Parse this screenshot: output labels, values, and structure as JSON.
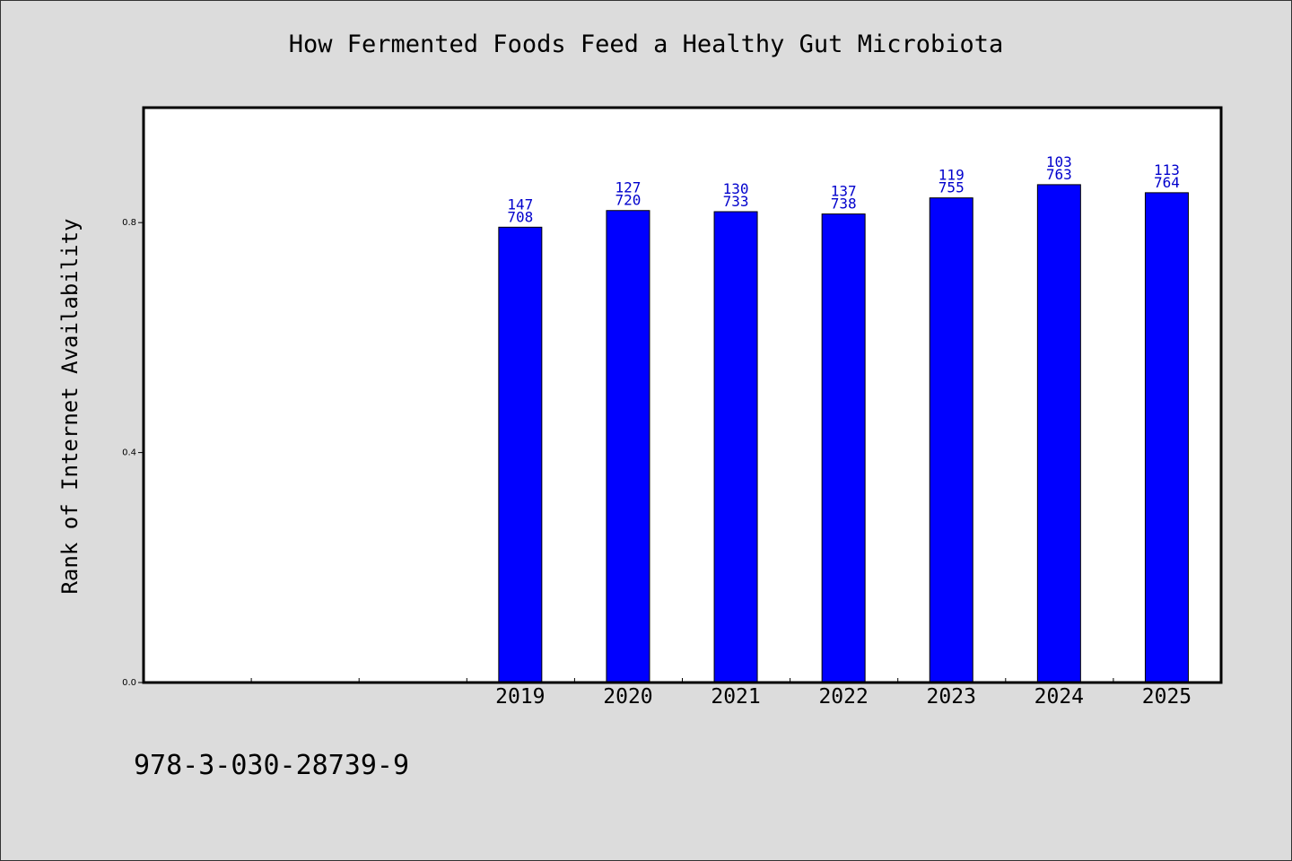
{
  "chart_data": {
    "type": "bar",
    "title": "How Fermented Foods Feed a Healthy Gut Microbiota",
    "ylabel": "Rank of Internet Availability",
    "xlabel": "",
    "categories": [
      "2019",
      "2020",
      "2021",
      "2022",
      "2023",
      "2024",
      "2025"
    ],
    "values": [
      0.792,
      0.821,
      0.819,
      0.815,
      0.843,
      0.866,
      0.852
    ],
    "label_top": [
      "147",
      "127",
      "130",
      "137",
      "119",
      "103",
      "113"
    ],
    "label_bottom": [
      "708",
      "720",
      "733",
      "738",
      "755",
      "763",
      "764"
    ],
    "ylim": [
      0,
      1.0
    ],
    "yticks": [
      "0.0",
      "0.4",
      "0.8"
    ],
    "bar_color": "#0000ff",
    "label_color": "#0000cc",
    "grid": false,
    "legend": "none"
  },
  "footer": {
    "isbn": "978-3-030-28739-9"
  }
}
